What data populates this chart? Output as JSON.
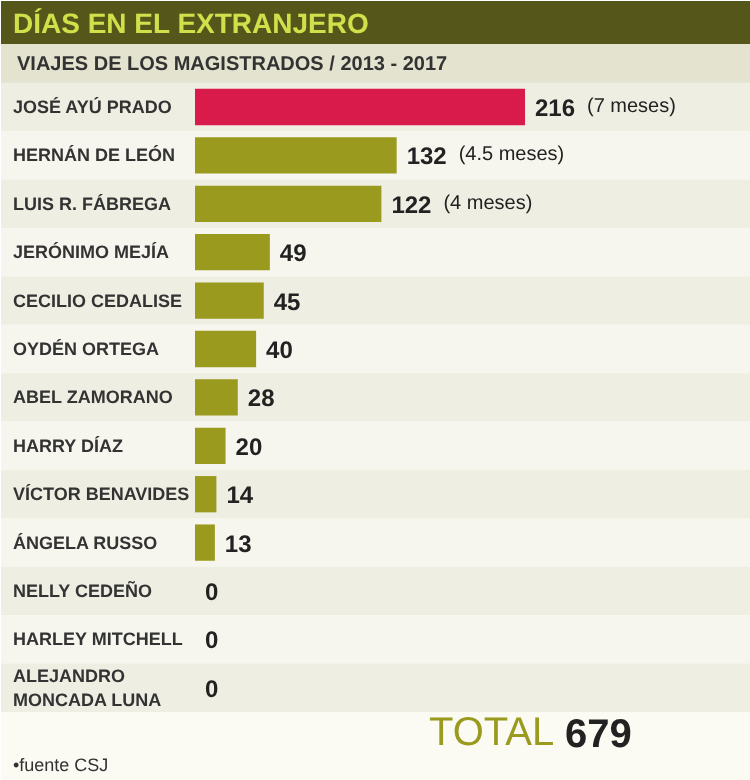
{
  "chart_data": {
    "type": "bar",
    "orientation": "horizontal",
    "title": "DÍAS EN EL EXTRANJERO",
    "subtitle": "VIAJES DE LOS MAGISTRADOS / 2013 - 2017",
    "categories": [
      "JOSÉ AYÚ PRADO",
      "HERNÁN DE LEÓN",
      "LUIS R. FÁBREGA",
      "JERÓNIMO MEJÍA",
      "CECILIO CEDALISE",
      "OYDÉN ORTEGA",
      "ABEL ZAMORANO",
      "HARRY DÍAZ",
      "VÍCTOR BENAVIDES",
      "ÁNGELA RUSSO",
      "NELLY CEDEÑO",
      "HARLEY MITCHELL",
      "ALEJANDRO MONCADA LUNA"
    ],
    "values": [
      216,
      132,
      122,
      49,
      45,
      40,
      28,
      20,
      14,
      13,
      0,
      0,
      0
    ],
    "colors": [
      "#d81b4a",
      "#9a9a1e",
      "#9a9a1e",
      "#9a9a1e",
      "#9a9a1e",
      "#9a9a1e",
      "#9a9a1e",
      "#9a9a1e",
      "#9a9a1e",
      "#9a9a1e",
      "#9a9a1e",
      "#9a9a1e",
      "#9a9a1e"
    ],
    "value_labels": [
      "216 (7 meses)",
      "132 (4.5 meses)",
      "122 (4 meses)",
      "49",
      "45",
      "40",
      "28",
      "20",
      "14",
      "13",
      "0",
      "0",
      "0"
    ],
    "annotations": [
      "TOTAL 679",
      "•fuente CSJ"
    ],
    "grid": false
  }
}
